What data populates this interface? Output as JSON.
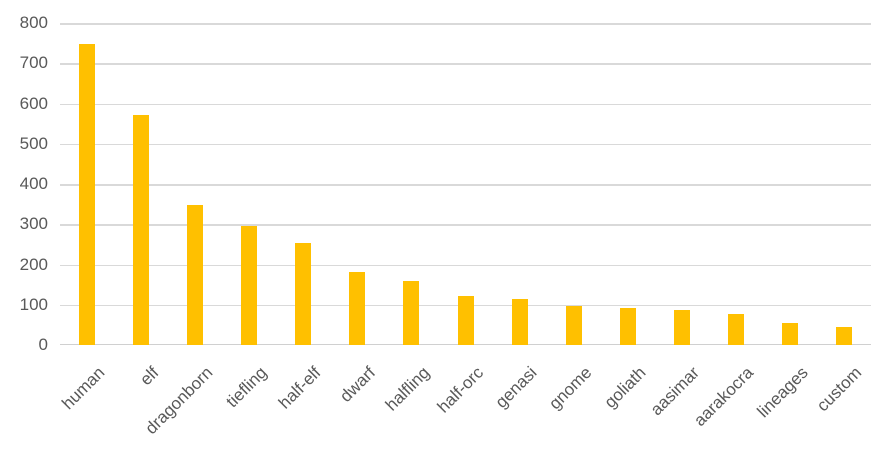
{
  "chart_data": {
    "type": "bar",
    "title": "",
    "xlabel": "",
    "ylabel": "",
    "categories": [
      "human",
      "elf",
      "dragonborn",
      "tiefling",
      "half-elf",
      "dwarf",
      "halfling",
      "half-orc",
      "genasi",
      "gnome",
      "goliath",
      "aasimar",
      "aarakocra",
      "lineages",
      "custom"
    ],
    "values": [
      748,
      572,
      348,
      296,
      254,
      182,
      158,
      121,
      114,
      96,
      93,
      86,
      77,
      55,
      44
    ],
    "ylim": [
      0,
      800
    ],
    "yticks": [
      0,
      100,
      200,
      300,
      400,
      500,
      600,
      700,
      800
    ],
    "grid": true,
    "legend": false,
    "x_label_rotation_deg": -45,
    "colors": {
      "bar": "#FFC000",
      "gridline": "#D9D9D9",
      "axis_line": "#D0D0D0",
      "label_text": "#595959",
      "background": "#FFFFFF"
    }
  }
}
